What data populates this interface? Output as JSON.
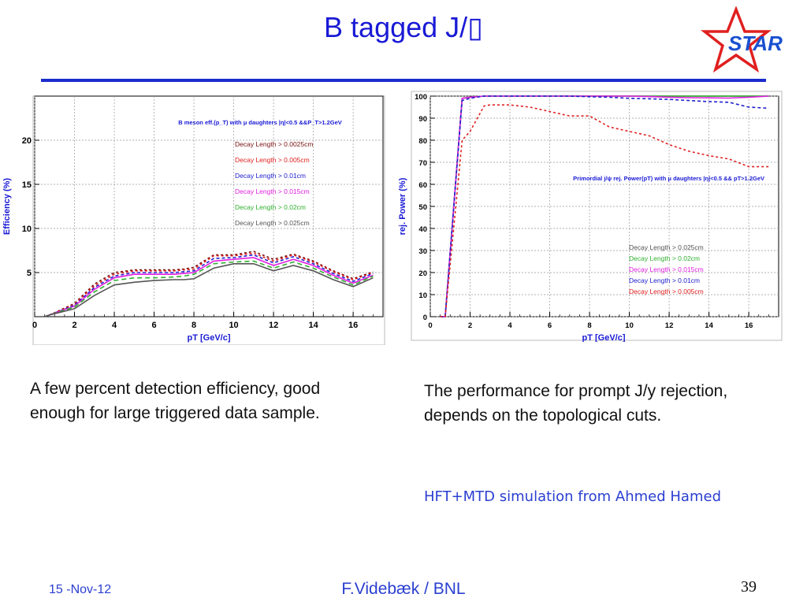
{
  "slide": {
    "title": "B tagged J/▯",
    "logo_text": "STAR",
    "caption_left": "A few percent detection efficiency, good enough for large triggered data sample.",
    "caption_right": "The performance for prompt J/y rejection, depends on the topological cuts.",
    "note": "HFT+MTD simulation from Ahmed Hamed",
    "date": "15 -Nov-12",
    "author": "F.Videbæk / BNL",
    "page": "39"
  },
  "colors": {
    "title": "#1a1ad6",
    "rule": "#1a2ccc",
    "footer": "#2a3fd0",
    "logo_red": "#e02020",
    "logo_blue": "#1a50d0"
  },
  "chart_data": [
    {
      "type": "line",
      "title": "B meson eff.(p_T) with μ daughters |η|<0.5 &&P_T>1.2GeV",
      "xlabel": "pT [GeV/c]",
      "ylabel": "Efficiency (%)",
      "xlim": [
        0,
        17.5
      ],
      "ylim": [
        0,
        25
      ],
      "xticks": [
        0,
        2,
        4,
        6,
        8,
        10,
        12,
        14,
        16
      ],
      "yticks": [
        5,
        10,
        15,
        20
      ],
      "grid": true,
      "legend_position": "right",
      "x": [
        0.5,
        0.75,
        2,
        3,
        4,
        5,
        6,
        7,
        7.5,
        8,
        9,
        10,
        11,
        12,
        13,
        14,
        15,
        16,
        17
      ],
      "series": [
        {
          "name": "Decay Length > 0.0025cm",
          "color": "#7a1010",
          "dash": "3,3",
          "values": [
            0,
            0.2,
            1.5,
            3.7,
            5.0,
            5.3,
            5.3,
            5.3,
            5.4,
            5.6,
            7.0,
            7.0,
            7.4,
            6.5,
            7.1,
            6.3,
            5.2,
            4.3,
            5.1
          ]
        },
        {
          "name": "Decay Length > 0.005cm",
          "color": "#e02020",
          "dash": "3,3",
          "values": [
            0,
            0.2,
            1.4,
            3.5,
            4.8,
            5.2,
            5.2,
            5.2,
            5.3,
            5.4,
            6.9,
            6.9,
            7.2,
            6.3,
            7.0,
            6.2,
            5.1,
            4.2,
            5.0
          ]
        },
        {
          "name": "Decay Length > 0.01cm",
          "color": "#2020d0",
          "dash": "4,3",
          "values": [
            0,
            0.2,
            1.3,
            3.3,
            4.6,
            5.0,
            5.0,
            5.0,
            5.1,
            5.2,
            6.6,
            6.7,
            7.0,
            6.1,
            6.8,
            6.0,
            4.9,
            4.0,
            4.9
          ]
        },
        {
          "name": "Decay Length > 0.015cm",
          "color": "#e020e0",
          "dash": "",
          "values": [
            0,
            0.2,
            1.2,
            3.1,
            4.4,
            4.8,
            4.8,
            4.8,
            4.9,
            5.0,
            6.3,
            6.5,
            6.7,
            5.8,
            6.5,
            5.8,
            4.7,
            3.8,
            4.7
          ]
        },
        {
          "name": "Decay Length > 0.02cm",
          "color": "#30b030",
          "dash": "6,4",
          "values": [
            0,
            0.2,
            1.1,
            2.8,
            4.1,
            4.4,
            4.4,
            4.5,
            4.6,
            4.8,
            6.0,
            6.2,
            6.3,
            5.5,
            6.2,
            5.5,
            4.5,
            3.6,
            4.6
          ]
        },
        {
          "name": "Decay Length > 0.025cm",
          "color": "#555555",
          "dash": "",
          "values": [
            0,
            0.2,
            0.9,
            2.4,
            3.6,
            3.9,
            4.1,
            4.2,
            4.2,
            4.3,
            5.5,
            6.0,
            6.0,
            5.2,
            5.8,
            5.2,
            4.2,
            3.4,
            4.4
          ]
        }
      ],
      "legend_order": [
        "Decay Length > 0.0025cm",
        "Decay Length > 0.005cm",
        "Decay Length > 0.01cm",
        "Decay Length > 0.015cm",
        "Decay Length > 0.02cm",
        "Decay Length > 0.025cm"
      ]
    },
    {
      "type": "line",
      "title": "Primordial j/ψ rej. Power(pT) with μ daughters |η|<0.5 && pT>1.2GeV",
      "xlabel": "pT [GeV/c]",
      "ylabel": "rej. Power (%)",
      "xlim": [
        0,
        17.5
      ],
      "ylim": [
        0,
        100
      ],
      "xticks": [
        0,
        2,
        4,
        6,
        8,
        10,
        12,
        14,
        16
      ],
      "yticks": [
        0,
        10,
        20,
        30,
        40,
        50,
        60,
        70,
        80,
        90,
        100
      ],
      "grid": true,
      "legend_position": "bottom-right",
      "x": [
        0.5,
        0.75,
        1.6,
        2,
        2.7,
        3,
        4,
        5,
        6,
        7,
        8,
        9,
        10,
        11,
        12,
        13,
        14,
        15,
        16,
        17
      ],
      "series": [
        {
          "name": "Decay Length > 0.025cm",
          "color": "#555555",
          "dash": "",
          "values": [
            0,
            0,
            99,
            99.5,
            100,
            100,
            100,
            100,
            100,
            100,
            100,
            100,
            100,
            100,
            100,
            100,
            100,
            100,
            100,
            100
          ]
        },
        {
          "name": "Decay Length > 0.02cm",
          "color": "#30b030",
          "dash": "",
          "values": [
            0,
            0,
            99,
            99.5,
            100,
            100,
            100,
            100,
            100,
            100,
            100,
            100,
            100,
            100,
            100,
            100,
            100,
            100,
            100,
            100
          ]
        },
        {
          "name": "Decay Length > 0.015cm",
          "color": "#e020e0",
          "dash": "",
          "values": [
            0,
            0,
            99,
            99.5,
            100,
            100,
            100,
            100,
            100,
            100,
            100,
            100,
            100,
            99.8,
            99.5,
            99.3,
            99.2,
            99.1,
            99.5,
            100
          ]
        },
        {
          "name": "Decay Length > 0.01cm",
          "color": "#2020d0",
          "dash": "4,3",
          "values": [
            0,
            0,
            98,
            99,
            100,
            100,
            100,
            100,
            100,
            100,
            99.7,
            99.5,
            99,
            98.8,
            98.5,
            98,
            97.5,
            97.2,
            95,
            94.5
          ]
        },
        {
          "name": "Decay Length > 0.005cm",
          "color": "#e02020",
          "dash": "3,3",
          "values": [
            0,
            0,
            80,
            84,
            95.5,
            96,
            96,
            95,
            93,
            91,
            91,
            86,
            84,
            82,
            78,
            75,
            73,
            71.5,
            68,
            68
          ]
        }
      ],
      "legend_order": [
        "Decay Length > 0.025cm",
        "Decay Length > 0.02cm",
        "Decay Length > 0.015cm",
        "Decay Length > 0.01cm",
        "Decay Length > 0.005cm"
      ]
    }
  ]
}
